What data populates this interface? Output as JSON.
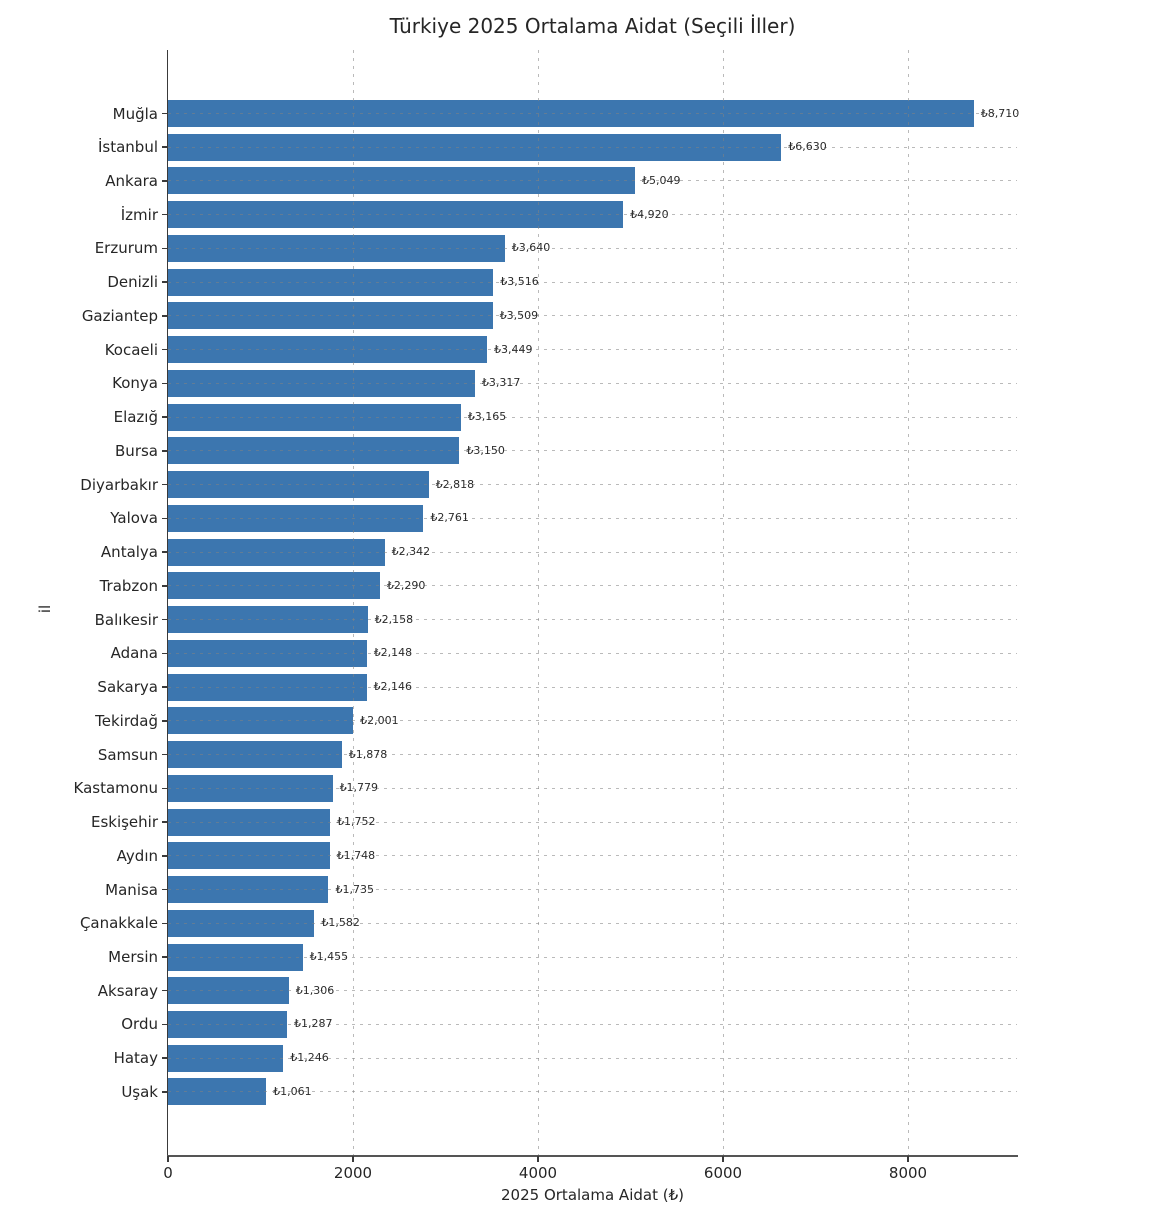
{
  "chart_data": {
    "type": "bar",
    "orientation": "horizontal",
    "title": "Türkiye 2025 Ortalama Aidat (Seçili İller)",
    "xlabel": "2025 Ortalama Aidat (₺)",
    "ylabel": "il",
    "xlim": [
      0,
      9178
    ],
    "xticks": [
      0,
      2000,
      4000,
      6000,
      8000
    ],
    "xtick_labels": [
      "0",
      "2000",
      "4000",
      "6000",
      "8000"
    ],
    "grid": true,
    "grid_style": "dashed",
    "legend": "none",
    "bar_color": "#3c76af",
    "currency_symbol": "₺",
    "categories": [
      "Muğla",
      "İstanbul",
      "Ankara",
      "İzmir",
      "Erzurum",
      "Denizli",
      "Gaziantep",
      "Kocaeli",
      "Konya",
      "Elazığ",
      "Bursa",
      "Diyarbakır",
      "Yalova",
      "Antalya",
      "Trabzon",
      "Balıkesir",
      "Adana",
      "Sakarya",
      "Tekirdağ",
      "Samsun",
      "Kastamonu",
      "Eskişehir",
      "Aydın",
      "Manisa",
      "Çanakkale",
      "Mersin",
      "Aksaray",
      "Ordu",
      "Hatay",
      "Uşak"
    ],
    "values": [
      8710,
      6630,
      5049,
      4920,
      3640,
      3516,
      3509,
      3449,
      3317,
      3165,
      3150,
      2818,
      2761,
      2342,
      2290,
      2158,
      2148,
      2146,
      2001,
      1878,
      1779,
      1752,
      1748,
      1735,
      1582,
      1455,
      1306,
      1287,
      1246,
      1061
    ],
    "value_labels": [
      "₺8,710",
      "₺6,630",
      "₺5,049",
      "₺4,920",
      "₺3,640",
      "₺3,516",
      "₺3,509",
      "₺3,449",
      "₺3,317",
      "₺3,165",
      "₺3,150",
      "₺2,818",
      "₺2,761",
      "₺2,342",
      "₺2,290",
      "₺2,158",
      "₺2,148",
      "₺2,146",
      "₺2,001",
      "₺1,878",
      "₺1,779",
      "₺1,752",
      "₺1,748",
      "₺1,735",
      "₺1,582",
      "₺1,455",
      "₺1,306",
      "₺1,287",
      "₺1,246",
      "₺1,061"
    ]
  }
}
